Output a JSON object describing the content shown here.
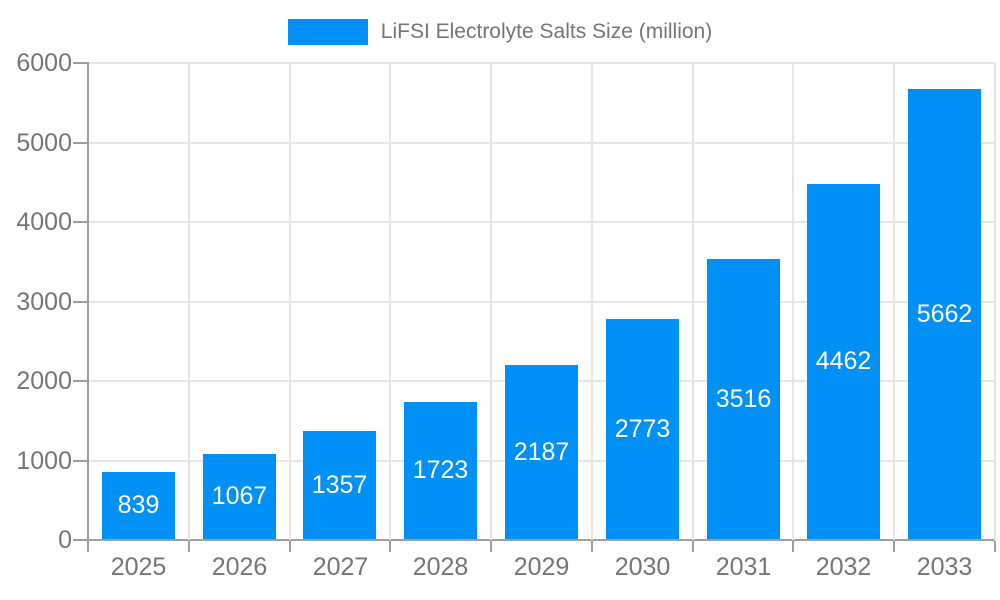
{
  "chart_data": {
    "type": "bar",
    "title": "",
    "legend": {
      "label": "LiFSI Electrolyte Salts Size (million)",
      "position": "top"
    },
    "categories": [
      "2025",
      "2026",
      "2027",
      "2028",
      "2029",
      "2030",
      "2031",
      "2032",
      "2033"
    ],
    "series": [
      {
        "name": "LiFSI Electrolyte Salts Size (million)",
        "values": [
          839,
          1067,
          1357,
          1723,
          2187,
          2773,
          3516,
          4462,
          5662
        ]
      }
    ],
    "data_labels": [
      "839",
      "1067",
      "1357",
      "1723",
      "2187",
      "2773",
      "3516",
      "4462",
      "5662"
    ],
    "xlabel": "",
    "ylabel": "",
    "ylim": [
      0,
      6000
    ],
    "y_ticks": [
      0,
      1000,
      2000,
      3000,
      4000,
      5000,
      6000
    ],
    "grid": true,
    "colors": {
      "bar": "#0190F5",
      "bar_label": "#FFFFFF",
      "axis": "#9E9E9E",
      "grid": "#E6E6E6",
      "text": "#757575"
    }
  }
}
